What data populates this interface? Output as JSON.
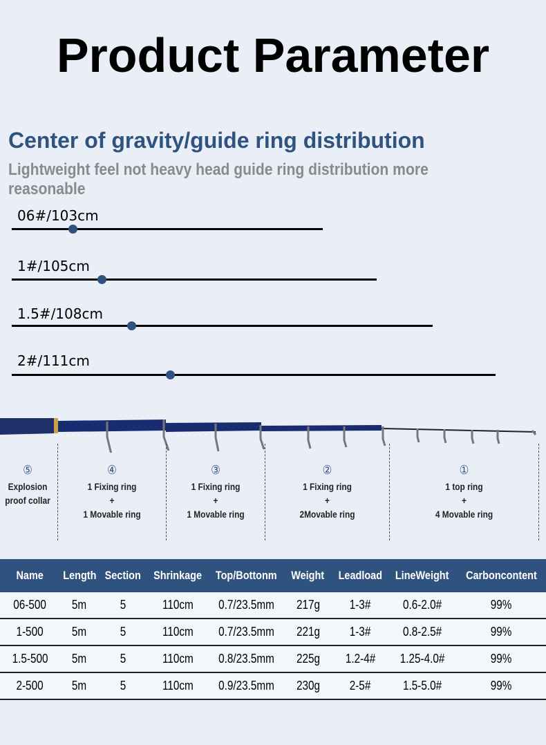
{
  "title": "Product Parameter",
  "subtitle": "Center of gravity/guide ring distribution",
  "description": "Lightweight feel not heavy head guide ring distribution more reasonable",
  "gravity_models": [
    {
      "label": "06#/103cm",
      "balance_fraction": 0.2
    },
    {
      "label": "1#/105cm",
      "balance_fraction": 0.25
    },
    {
      "label": "1.5#/108cm",
      "balance_fraction": 0.29
    },
    {
      "label": "2#/111cm",
      "balance_fraction": 0.33
    }
  ],
  "sections": [
    {
      "num": "⑤",
      "lines": [
        "Explosion",
        "proof collar"
      ]
    },
    {
      "num": "④",
      "lines": [
        "1 Fixing ring",
        "+",
        "1 Movable ring"
      ]
    },
    {
      "num": "③",
      "lines": [
        "1 Fixing ring",
        "+",
        "1 Movable ring"
      ]
    },
    {
      "num": "②",
      "lines": [
        "1 Fixing ring",
        "+",
        "2Movable ring"
      ]
    },
    {
      "num": "①",
      "lines": [
        "1 top ring",
        "+",
        "4 Movable ring"
      ]
    }
  ],
  "table": {
    "headers": [
      "Name",
      "Length",
      "Section",
      "Shrinkage",
      "Top/Bottonm",
      "Weight",
      "Leadload",
      "LineWeight",
      "Carboncontent"
    ],
    "rows": [
      [
        "06-500",
        "5m",
        "5",
        "110cm",
        "0.7/23.5mm",
        "217g",
        "1-3#",
        "0.6-2.0#",
        "99%"
      ],
      [
        "1-500",
        "5m",
        "5",
        "110cm",
        "0.7/23.5mm",
        "221g",
        "1-3#",
        "0.8-2.5#",
        "99%"
      ],
      [
        "1.5-500",
        "5m",
        "5",
        "110cm",
        "0.8/23.5mm",
        "225g",
        "1.2-4#",
        "1.25-4.0#",
        "99%"
      ],
      [
        "2-500",
        "5m",
        "5",
        "110cm",
        "0.9/23.5mm",
        "230g",
        "2-5#",
        "1.5-5.0#",
        "99%"
      ]
    ]
  },
  "colors": {
    "accent": "#2f527f",
    "background": "#e9eef7"
  }
}
